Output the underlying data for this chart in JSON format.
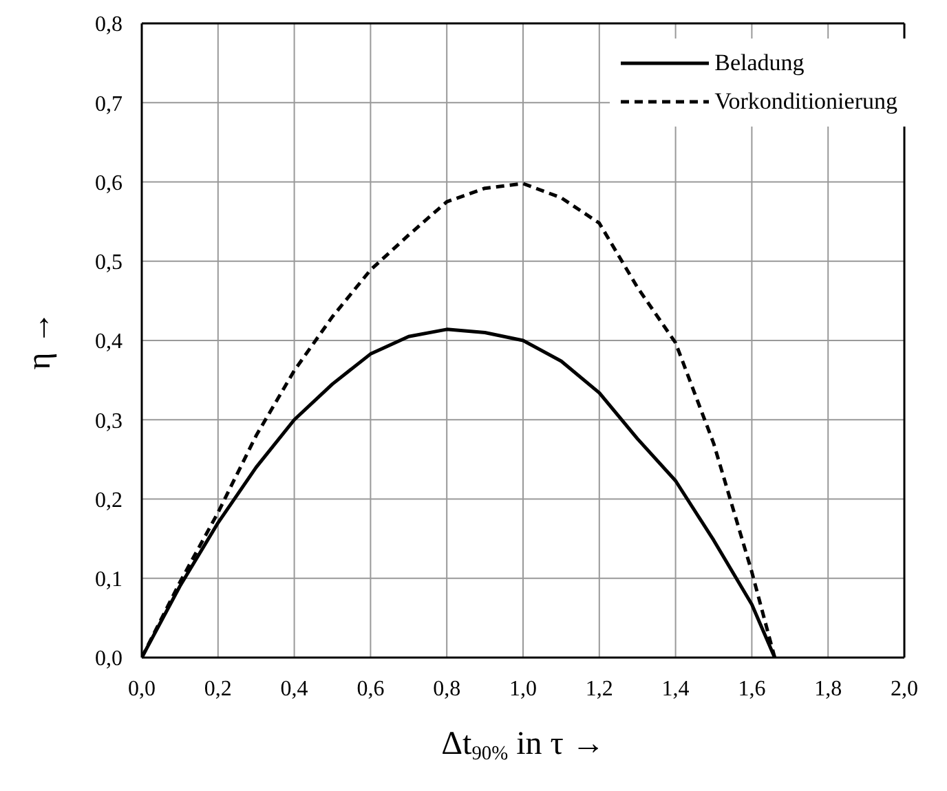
{
  "chart_data": {
    "type": "line",
    "xlabel": "Δt$_{90%}$ in τ →",
    "ylabel": "η →",
    "x": [
      0,
      0.1,
      0.2,
      0.3,
      0.4,
      0.5,
      0.6,
      0.7,
      0.8,
      0.9,
      1.0,
      1.1,
      1.2,
      1.3,
      1.4,
      1.5,
      1.6,
      1.66
    ],
    "series": [
      {
        "name": "Beladung",
        "color": "#000000",
        "line_style": "solid",
        "values": [
          0,
          0.09,
          0.17,
          0.24,
          0.3,
          0.345,
          0.383,
          0.405,
          0.414,
          0.41,
          0.4,
          0.374,
          0.334,
          0.276,
          0.223,
          0.148,
          0.067,
          0
        ]
      },
      {
        "name": "Vorkonditionierung",
        "color": "#000000",
        "line_style": "dashed",
        "values": [
          0,
          0.095,
          0.183,
          0.28,
          0.362,
          0.43,
          0.489,
          0.533,
          0.575,
          0.592,
          0.598,
          0.58,
          0.548,
          0.467,
          0.397,
          0.27,
          0.108,
          0
        ]
      }
    ],
    "xlim": [
      0,
      2
    ],
    "ylim": [
      0,
      0.8
    ],
    "xticks": [
      {
        "value": 0,
        "label": "0,0"
      },
      {
        "value": 0.2,
        "label": "0,2"
      },
      {
        "value": 0.4,
        "label": "0,4"
      },
      {
        "value": 0.6,
        "label": "0,6"
      },
      {
        "value": 0.8,
        "label": "0,8"
      },
      {
        "value": 1,
        "label": "1,0"
      },
      {
        "value": 1.2,
        "label": "1,2"
      },
      {
        "value": 1.4,
        "label": "1,4"
      },
      {
        "value": 1.6,
        "label": "1,6"
      },
      {
        "value": 1.8,
        "label": "1,8"
      },
      {
        "value": 2,
        "label": "2,0"
      }
    ],
    "yticks": [
      {
        "value": 0,
        "label": "0,0"
      },
      {
        "value": 0.1,
        "label": "0,1"
      },
      {
        "value": 0.2,
        "label": "0,2"
      },
      {
        "value": 0.3,
        "label": "0,3"
      },
      {
        "value": 0.4,
        "label": "0,4"
      },
      {
        "value": 0.5,
        "label": "0,5"
      },
      {
        "value": 0.6,
        "label": "0,6"
      },
      {
        "value": 0.7,
        "label": "0,7"
      },
      {
        "value": 0.8,
        "label": "0,8"
      }
    ],
    "grid": true,
    "legend": "top right",
    "marker": "none"
  }
}
